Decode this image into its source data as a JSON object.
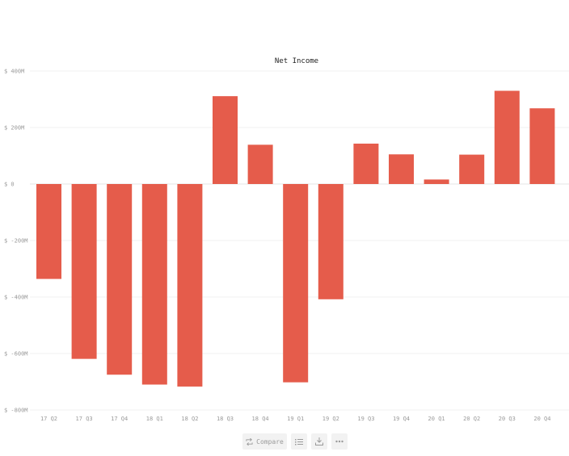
{
  "chart_data": {
    "type": "bar",
    "title": "Net Income",
    "xlabel": "",
    "ylabel": "",
    "categories": [
      "17 Q2",
      "17 Q3",
      "17 Q4",
      "18 Q1",
      "18 Q2",
      "18 Q3",
      "18 Q4",
      "19 Q1",
      "19 Q2",
      "19 Q3",
      "19 Q4",
      "20 Q1",
      "20 Q2",
      "20 Q3",
      "20 Q4"
    ],
    "values": [
      -336,
      -619,
      -675,
      -710,
      -717,
      311,
      139,
      -702,
      -408,
      143,
      105,
      16,
      104,
      330,
      268
    ],
    "ylim": [
      -800,
      400
    ],
    "yticks": [
      400,
      200,
      0,
      -200,
      -400,
      -600,
      -800
    ],
    "ytick_labels": [
      "$ 400M",
      "$ 200M",
      "$ 0",
      "$ -200M",
      "$ -400M",
      "$ -600M",
      "$ -800M"
    ],
    "units": "M",
    "grid": true,
    "bar_color": "#e55c4b"
  },
  "toolbar": {
    "compare_label": "Compare",
    "compare_icon": "compare-icon",
    "list_icon": "list-icon",
    "download_icon": "download-icon",
    "more_icon": "more-icon"
  }
}
